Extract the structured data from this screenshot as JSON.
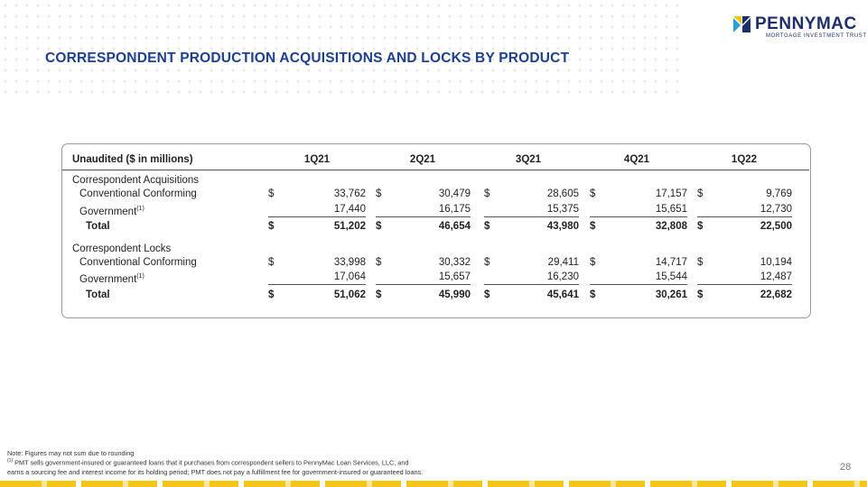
{
  "header": {
    "title": "CORRESPONDENT PRODUCTION ACQUISITIONS AND LOCKS BY PRODUCT"
  },
  "logo": {
    "name": "PENNYMAC",
    "tagline": "MORTGAGE INVESTMENT TRUST"
  },
  "table": {
    "columns": [
      "Unaudited ($ in millions)",
      "1Q21",
      "2Q21",
      "3Q21",
      "4Q21",
      "1Q22"
    ],
    "currency": "$",
    "sections": [
      {
        "title": "Correspondent Acquisitions",
        "rows": [
          {
            "label": "Conventional Conforming",
            "values": [
              "33,762",
              "30,479",
              "28,605",
              "17,157",
              "9,769"
            ]
          },
          {
            "label": "Government",
            "note": "(1)",
            "values": [
              "17,440",
              "16,175",
              "15,375",
              "15,651",
              "12,730"
            ]
          }
        ],
        "total": {
          "label": "Total",
          "values": [
            "51,202",
            "46,654",
            "43,980",
            "32,808",
            "22,500"
          ]
        }
      },
      {
        "title": "Correspondent Locks",
        "rows": [
          {
            "label": "Conventional Conforming",
            "values": [
              "33,998",
              "30,332",
              "29,411",
              "14,717",
              "10,194"
            ]
          },
          {
            "label": "Government",
            "note": "(1)",
            "values": [
              "17,064",
              "15,657",
              "16,230",
              "15,544",
              "12,487"
            ]
          }
        ],
        "total": {
          "label": "Total",
          "values": [
            "51,062",
            "45,990",
            "45,641",
            "30,261",
            "22,682"
          ]
        }
      }
    ]
  },
  "footnote": {
    "note": "Note: Figures may not sum due to rounding",
    "marker": "(1)",
    "lines": [
      "PMT sells government-insured or guaranteed loans that it purchases from correspondent sellers to PennyMac Loan Services, LLC, and",
      "earns a sourcing fee and interest income for its holding period; PMT does not pay a fulfillment fee for government-insured or guaranteed loans."
    ]
  },
  "page_number": "28"
}
